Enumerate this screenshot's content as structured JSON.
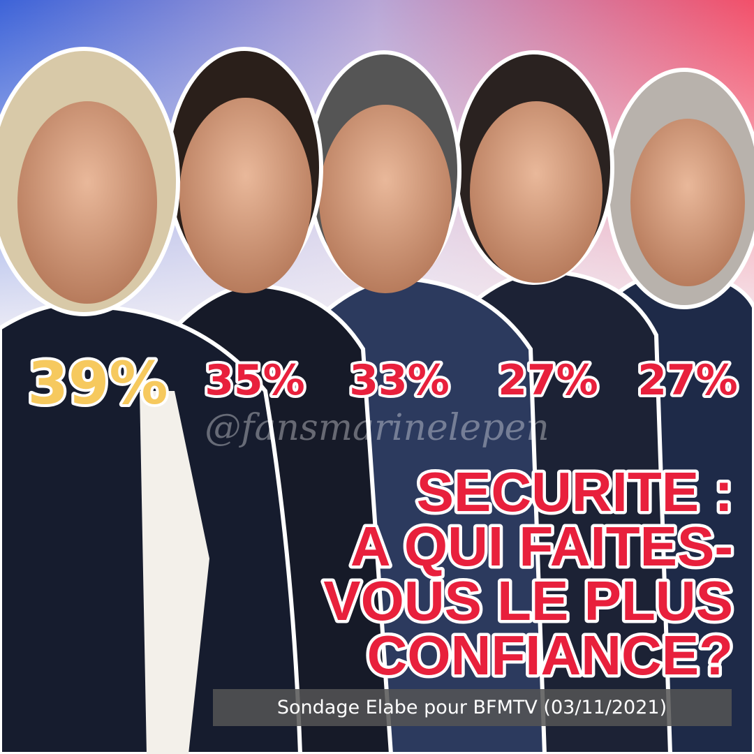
{
  "scores": [
    "39%",
    "35%",
    "33%",
    "27%",
    "27%"
  ],
  "watermark": "@fansmarinelepen",
  "title": {
    "lines": [
      "SECURITE :",
      "A QUI FAITES-",
      "VOUS LE PLUS",
      "CONFIANCE?"
    ]
  },
  "source": "Sondage Elabe pour BFMTV (03/11/2021)"
}
